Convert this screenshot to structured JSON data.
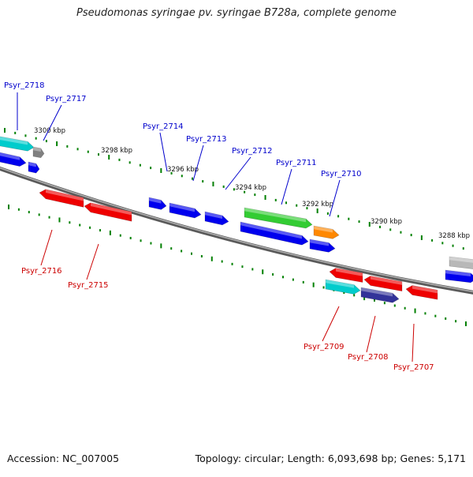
{
  "title": "Pseudomonas syringae pv. syringae B728a, complete genome",
  "footer": {
    "accession": "Accession: NC_007005",
    "summary": "Topology: circular; Length: 6,093,698 bp; Genes: 5,171"
  },
  "colors": {
    "backbone": "#808080",
    "ticks": "#008000",
    "forward_label": "#0000cc",
    "reverse_label": "#cc0000"
  },
  "kbp_labels": [
    "3300 kbp",
    "3298 kbp",
    "3296 kbp",
    "3294 kbp",
    "3292 kbp",
    "3290 kbp",
    "3288 kbp"
  ],
  "genes_forward": [
    {
      "id": "Psyr_2718",
      "color": "#00cccc"
    },
    {
      "id": "Psyr_2717",
      "color": "#808080"
    },
    {
      "id": "Psyr_2714",
      "color": "#0000ee"
    },
    {
      "id": "Psyr_2713",
      "color": "#0000ee"
    },
    {
      "id": "Psyr_2712",
      "color": "#0000ee"
    },
    {
      "id": "Psyr_2711",
      "color": "#33cc33"
    },
    {
      "id": "Psyr_2710",
      "color": "#ff8800"
    }
  ],
  "genes_reverse": [
    {
      "id": "Psyr_2716",
      "color": "#ee0000"
    },
    {
      "id": "Psyr_2715",
      "color": "#ee0000"
    },
    {
      "id": "Psyr_2709",
      "color": "#00cccc"
    },
    {
      "id": "Psyr_2708",
      "color": "#333399"
    },
    {
      "id": "Psyr_2707",
      "color": "#ee0000"
    }
  ]
}
